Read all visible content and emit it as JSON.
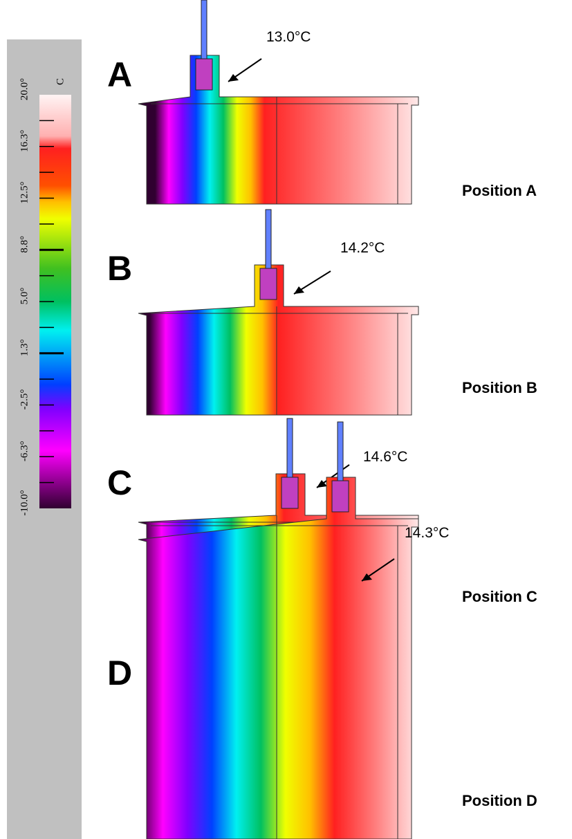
{
  "colorbar": {
    "unit": "C",
    "ticks": [
      "20.0°",
      "16.3°",
      "12.5°",
      "8.8°",
      "5.0°",
      "1.3°",
      "-2.5°",
      "-6.3°",
      "-10.0°"
    ]
  },
  "panels": [
    {
      "letter": "A",
      "temperature": "13.0°C",
      "position": "Position A"
    },
    {
      "letter": "B",
      "temperature": "14.2°C",
      "position": "Position B"
    },
    {
      "letter": "C",
      "temperature": "14.6°C",
      "position": "Position C"
    },
    {
      "letter": "D",
      "temperature": "14.3°C",
      "position": "Position D"
    }
  ]
}
